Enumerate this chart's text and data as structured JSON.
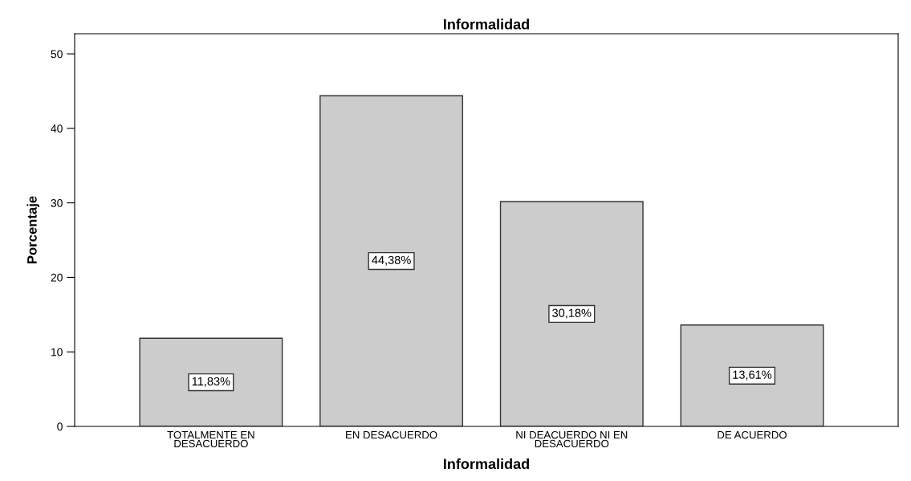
{
  "chart_data": {
    "type": "bar",
    "title": "Informalidad",
    "xlabel": "Informalidad",
    "ylabel": "Porcentaje",
    "categories": [
      "TOTALMENTE EN\nDESACUERDO",
      "EN DESACUERDO",
      "NI DEACUERDO NI EN\nDESACUERDO",
      "DE ACUERDO"
    ],
    "values": [
      11.83,
      44.38,
      30.18,
      13.61
    ],
    "value_labels": [
      "11,83%",
      "44,38%",
      "30,18%",
      "13,61%"
    ],
    "color": "#cccccc",
    "ylim": [
      0,
      52.7
    ],
    "yticks": [
      0,
      10,
      20,
      30,
      40,
      50
    ],
    "grid": false,
    "legend": false
  }
}
